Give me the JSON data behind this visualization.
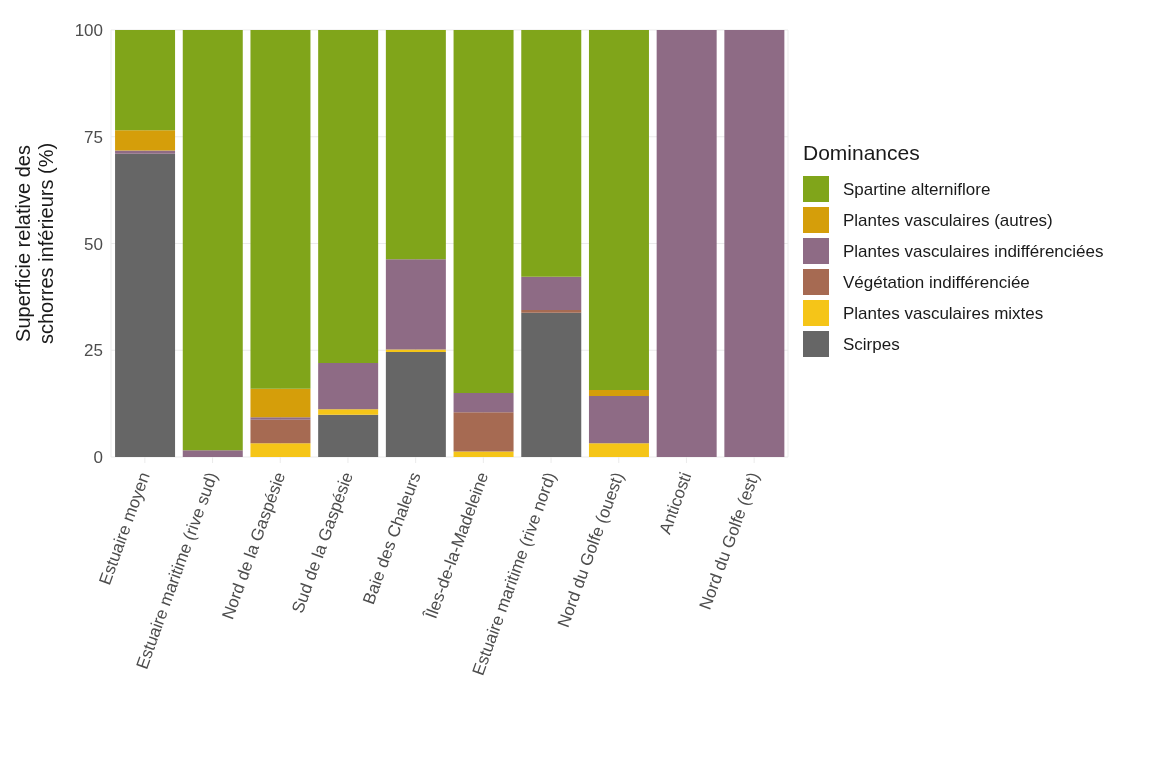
{
  "chart_data": {
    "type": "bar",
    "stacked": true,
    "ylabel": "Superficie relative des schorres inférieurs (%)",
    "legend_title": "Dominances",
    "legend": "right",
    "grid": true,
    "categories": [
      "Estuaire moyen",
      "Estuaire maritime (rive sud)",
      "Nord de la Gaspésie",
      "Sud de la Gaspésie",
      "Baie des Chaleurs",
      "Îles-de-la-Madeleine",
      "Estuaire maritime (rive nord)",
      "Nord du Golfe (ouest)",
      "Anticosti",
      "Nord du Golfe (est)"
    ],
    "ylim": [
      0,
      100
    ],
    "yticks": [
      0,
      25,
      50,
      75,
      100
    ],
    "series": [
      {
        "name": "Scirpes",
        "color": "#666666",
        "values": [
          71.0,
          0,
          0,
          9.9,
          24.6,
          0,
          33.8,
          0,
          0,
          0
        ]
      },
      {
        "name": "Plantes vasculaires mixtes",
        "color": "#f5c518",
        "values": [
          0,
          0,
          3.2,
          1.3,
          0.6,
          1.3,
          0,
          3.2,
          0,
          0
        ]
      },
      {
        "name": "Végétation indifférenciée",
        "color": "#a66a52",
        "values": [
          0,
          0,
          5.5,
          0,
          0,
          9.2,
          0.6,
          0,
          0,
          0
        ]
      },
      {
        "name": "Plantes vasculaires indifférenciées",
        "color": "#8e6b85",
        "values": [
          0.8,
          1.6,
          0.6,
          10.8,
          21.1,
          4.5,
          7.8,
          11.1,
          100,
          100
        ]
      },
      {
        "name": "Plantes vasculaires (autres)",
        "color": "#d59e0a",
        "values": [
          4.7,
          0,
          6.7,
          0,
          0,
          0,
          0,
          1.4,
          0,
          0
        ]
      },
      {
        "name": "Spartine alterniflore",
        "color": "#80a51a",
        "values": [
          23.5,
          98.4,
          84.0,
          78.0,
          53.7,
          85.0,
          57.8,
          84.3,
          0,
          0
        ]
      }
    ]
  }
}
